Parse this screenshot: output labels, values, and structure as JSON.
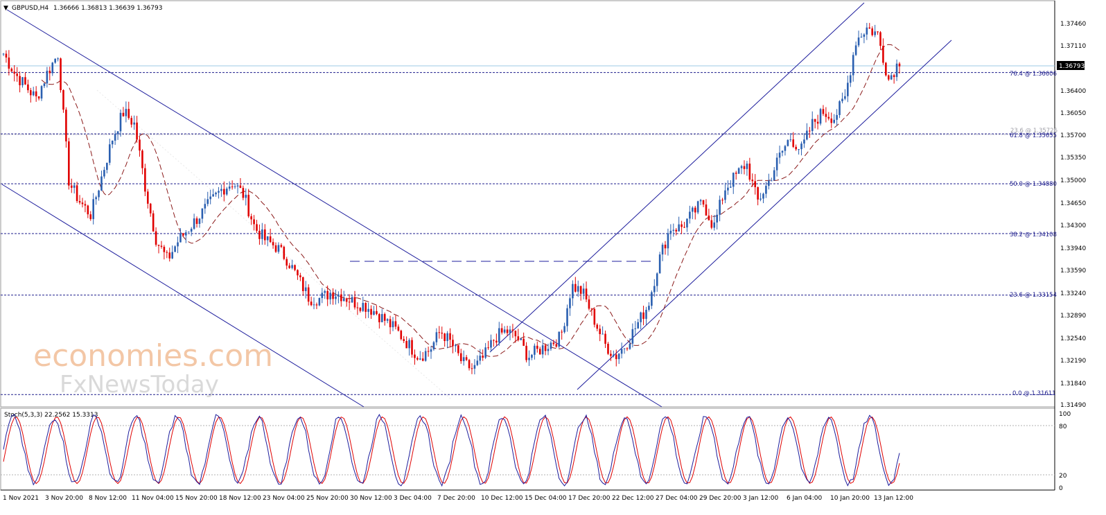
{
  "header": {
    "symbol": "GBPUSD,H4",
    "ohlc": "1.36666 1.36813 1.36639 1.36793"
  },
  "price_axis": {
    "ticks": [
      "1.37460",
      "1.37110",
      "1.36793",
      "1.36400",
      "1.36050",
      "1.35700",
      "1.35350",
      "1.35000",
      "1.34650",
      "1.34300",
      "1.33940",
      "1.33590",
      "1.33240",
      "1.32890",
      "1.32540",
      "1.32190",
      "1.31840",
      "1.31490"
    ],
    "current_price": "1.36793"
  },
  "fibonacci": {
    "levels": [
      {
        "label": "76.4 @ 1.36606",
        "price": 1.36606
      },
      {
        "label": "61.8 @ 1.35655",
        "price": 1.35655
      },
      {
        "label": "50.0 @ 1.34880",
        "price": 1.3488
      },
      {
        "label": "38.2 @ 1.34108",
        "price": 1.34108
      },
      {
        "label": "23.6 @ 1.33154",
        "price": 1.33154
      },
      {
        "label": "0.0 @ 1.31611",
        "price": 1.31611
      }
    ],
    "ghost_label": "23.6 @ 1.35726"
  },
  "stochastic": {
    "label": "Stoch(5,3,3) 22.2562 15.3313",
    "ticks": [
      "100",
      "80",
      "20",
      "0"
    ],
    "main_color": "#1c1c9c",
    "signal_color": "#e00000"
  },
  "time_axis": {
    "labels": [
      "1 Nov 2021",
      "3 Nov 20:00",
      "8 Nov 12:00",
      "11 Nov 04:00",
      "15 Nov 20:00",
      "18 Nov 12:00",
      "23 Nov 04:00",
      "25 Nov 20:00",
      "30 Nov 12:00",
      "3 Dec 04:00",
      "7 Dec 20:00",
      "10 Dec 12:00",
      "15 Dec 04:00",
      "17 Dec 20:00",
      "22 Dec 12:00",
      "27 Dec 04:00",
      "29 Dec 20:00",
      "3 Jan 12:00",
      "6 Jan 04:00",
      "10 Jan 20:00",
      "13 Jan 12:00"
    ]
  },
  "watermark": {
    "line1": "economies.com",
    "line2": "FxNewsToday"
  },
  "colors": {
    "bull": "#2a5fb0",
    "bear": "#e00000",
    "channel": "#1c1c9c",
    "ma": "#8b1a1a"
  },
  "chart_data": {
    "type": "candlestick",
    "symbol": "GBPUSD",
    "timeframe": "H4",
    "y_range": [
      1.3142,
      1.3772
    ],
    "x_labels": [
      "1 Nov 2021",
      "3 Nov 20:00",
      "8 Nov 12:00",
      "11 Nov 04:00",
      "15 Nov 20:00",
      "18 Nov 12:00",
      "23 Nov 04:00",
      "25 Nov 20:00",
      "30 Nov 12:00",
      "3 Dec 04:00",
      "7 Dec 20:00",
      "10 Dec 12:00",
      "15 Dec 04:00",
      "17 Dec 20:00",
      "22 Dec 12:00",
      "27 Dec 04:00",
      "29 Dec 20:00",
      "3 Jan 12:00",
      "6 Jan 04:00",
      "10 Jan 20:00",
      "13 Jan 12:00"
    ],
    "price_path": [
      1.369,
      1.366,
      1.364,
      1.362,
      1.366,
      1.369,
      1.349,
      1.346,
      1.344,
      1.35,
      1.356,
      1.36,
      1.358,
      1.348,
      1.34,
      1.337,
      1.34,
      1.342,
      1.344,
      1.346,
      1.348,
      1.349,
      1.347,
      1.342,
      1.34,
      1.339,
      1.337,
      1.334,
      1.331,
      1.331,
      1.332,
      1.3315,
      1.3305,
      1.33,
      1.329,
      1.3275,
      1.326,
      1.324,
      1.322,
      1.323,
      1.326,
      1.324,
      1.321,
      1.32,
      1.322,
      1.325,
      1.326,
      1.325,
      1.322,
      1.323,
      1.324,
      1.325,
      1.333,
      1.332,
      1.328,
      1.324,
      1.322,
      1.324,
      1.327,
      1.33,
      1.337,
      1.342,
      1.342,
      1.344,
      1.346,
      1.342,
      1.348,
      1.35,
      1.352,
      1.346,
      1.349,
      1.353,
      1.356,
      1.354,
      1.358,
      1.36,
      1.359,
      1.362,
      1.371,
      1.373,
      1.372,
      1.365,
      1.3679
    ],
    "current_price": 1.36793,
    "fibonacci_levels": {
      "0.0": 1.31611,
      "23.6": 1.33154,
      "38.2": 1.34108,
      "50.0": 1.3488,
      "61.8": 1.35655,
      "76.4": 1.36606
    },
    "stochastic": {
      "k": 22.2562,
      "d": 15.3313,
      "levels": [
        80,
        20
      ]
    }
  }
}
